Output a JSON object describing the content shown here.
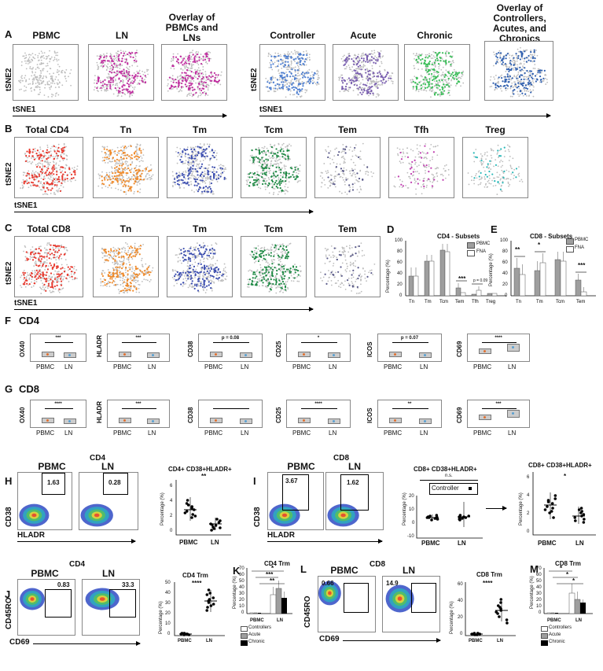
{
  "panels": {
    "A": {
      "letter": "A",
      "titles": [
        "PBMC",
        "LN",
        "Overlay of PBMCs and LNs",
        "Controller",
        "Acute",
        "Chronic",
        "Overlay of Controllers, Acutes, and Chronics"
      ],
      "colors": [
        "#9e9e9e",
        "#c030a0",
        "#c030a0",
        "#4f7fd0",
        "#7a5fb0",
        "#3cbf5a",
        "#3060b0"
      ],
      "xlabel": "tSNE1",
      "ylabel": "tSNE2"
    },
    "B": {
      "letter": "B",
      "titles": [
        "Total CD4",
        "Tn",
        "Tm",
        "Tcm",
        "Tem",
        "Tfh",
        "Treg"
      ],
      "colors": [
        "#e8392e",
        "#ef8a2a",
        "#3d4fb0",
        "#1f8a45",
        "#5a5a8a",
        "#c03fb0",
        "#2ab8b8"
      ],
      "xlabel": "tSNE1",
      "ylabel": "tSNE2"
    },
    "C": {
      "letter": "C",
      "titles": [
        "Total CD8",
        "Tn",
        "Tm",
        "Tcm",
        "Tem"
      ],
      "colors": [
        "#e8392e",
        "#ef8a2a",
        "#3d4fb0",
        "#1f8a45",
        "#5a5a8a"
      ],
      "xlabel": "tSNE1",
      "ylabel": "tSNE2"
    },
    "D": {
      "letter": "D",
      "title": "CD4 - Subsets",
      "ylabel": "Percentage (%)",
      "legend": [
        "PBMC",
        "FNA"
      ],
      "yticks": [
        "0",
        "20",
        "40",
        "60",
        "80",
        "100"
      ],
      "sigs": [
        "***",
        "p = 0.09"
      ]
    },
    "E": {
      "letter": "E",
      "title": "CD8 - Subsets",
      "ylabel": "Percentage (%)",
      "legend": [
        "PBMC",
        "FNA"
      ],
      "yticks": [
        "0",
        "20",
        "40",
        "60",
        "80",
        "100"
      ],
      "sigs": [
        "**",
        "*",
        "***"
      ]
    },
    "F": {
      "letter": "F",
      "group": "CD4",
      "markers": [
        "OX40",
        "HLADR",
        "CD38",
        "CD25",
        "ICOS",
        "CD69"
      ],
      "sigs": [
        "***",
        "***",
        "p = 0.08",
        "*",
        "p = 0.07",
        "****"
      ],
      "groups": [
        "PBMC",
        "LN"
      ]
    },
    "G": {
      "letter": "G",
      "group": "CD8",
      "markers": [
        "OX40",
        "HLADR",
        "CD38",
        "CD25",
        "ICOS",
        "CD69"
      ],
      "sigs": [
        "****",
        "***",
        "",
        "****",
        "**",
        "***"
      ],
      "groups": [
        "PBMC",
        "LN"
      ]
    },
    "H": {
      "letter": "H",
      "group": "CD4",
      "flow_labels": [
        "PBMC",
        "LN"
      ],
      "gate_values": [
        "1.63",
        "0.28"
      ],
      "xlabel": "HLADR",
      "ylabel": "CD38",
      "scatter_title": "CD4+ CD38+HLADR+",
      "scatter_ylabel": "Percentage (%)",
      "scatter_yticks": [
        "0",
        "2",
        "4",
        "6"
      ],
      "scatter_groups": [
        "PBMC",
        "LN"
      ],
      "sig": "**"
    },
    "I": {
      "letter": "I",
      "group": "CD8",
      "flow_labels": [
        "PBMC",
        "LN"
      ],
      "gate_values": [
        "3.67",
        "1.62"
      ],
      "xlabel": "HLADR",
      "ylabel": "CD38",
      "scatter_title": "CD8+ CD38+HLADR+",
      "scatter_ylabel": "Percentage (%)",
      "scatter_yticks_left": [
        "-10",
        "0",
        "10",
        "20"
      ],
      "scatter_yticks_right": [
        "0",
        "2",
        "4",
        "6"
      ],
      "scatter_groups": [
        "PBMC",
        "LN"
      ],
      "ns": "n.s.",
      "legend_label": "Controller",
      "sig": "*"
    },
    "J": {
      "letter": "J",
      "group": "CD4",
      "flow_labels": [
        "PBMC",
        "LN"
      ],
      "gate_values": [
        "0.83",
        "33.3"
      ],
      "xlabel": "CD69",
      "ylabel": "CD45RO",
      "scatter_title": "CD4 Trm",
      "scatter_ylabel": "Percentage (%)",
      "scatter_yticks": [
        "0",
        "10",
        "20",
        "30",
        "40",
        "50"
      ],
      "scatter_groups": [
        "PBMC",
        "LN"
      ],
      "sig": "****"
    },
    "K": {
      "letter": "K",
      "title": "CD4 Trm",
      "ylabel": "Percentage (%)",
      "yticks": [
        "0",
        "10",
        "20",
        "30",
        "40",
        "50",
        "60",
        "70"
      ],
      "groups": [
        "PBMC",
        "LN"
      ],
      "legend": [
        "Controllers",
        "Acute",
        "Chronic"
      ],
      "sigs": [
        "*",
        "***",
        "**"
      ]
    },
    "L": {
      "letter": "L",
      "group": "CD8",
      "flow_labels": [
        "PBMC",
        "LN"
      ],
      "gate_values": [
        "0.66",
        "14.9"
      ],
      "xlabel": "CD69",
      "ylabel": "CD45RO",
      "scatter_title": "CD8 Trm",
      "scatter_ylabel": "Percentage (%)",
      "scatter_yticks": [
        "0",
        "20",
        "40",
        "60"
      ],
      "scatter_groups": [
        "PBMC",
        "LN"
      ],
      "sig": "****"
    },
    "M": {
      "letter": "M",
      "title": "CD8 Trm",
      "ylabel": "Percentage (%)",
      "yticks": [
        "0",
        "10",
        "20",
        "30",
        "40",
        "50",
        "60",
        "70"
      ],
      "groups": [
        "PBMC",
        "LN"
      ],
      "legend": [
        "Controllers",
        "Acute",
        "Chronic"
      ],
      "sigs": [
        "*",
        "*",
        "*"
      ]
    }
  }
}
